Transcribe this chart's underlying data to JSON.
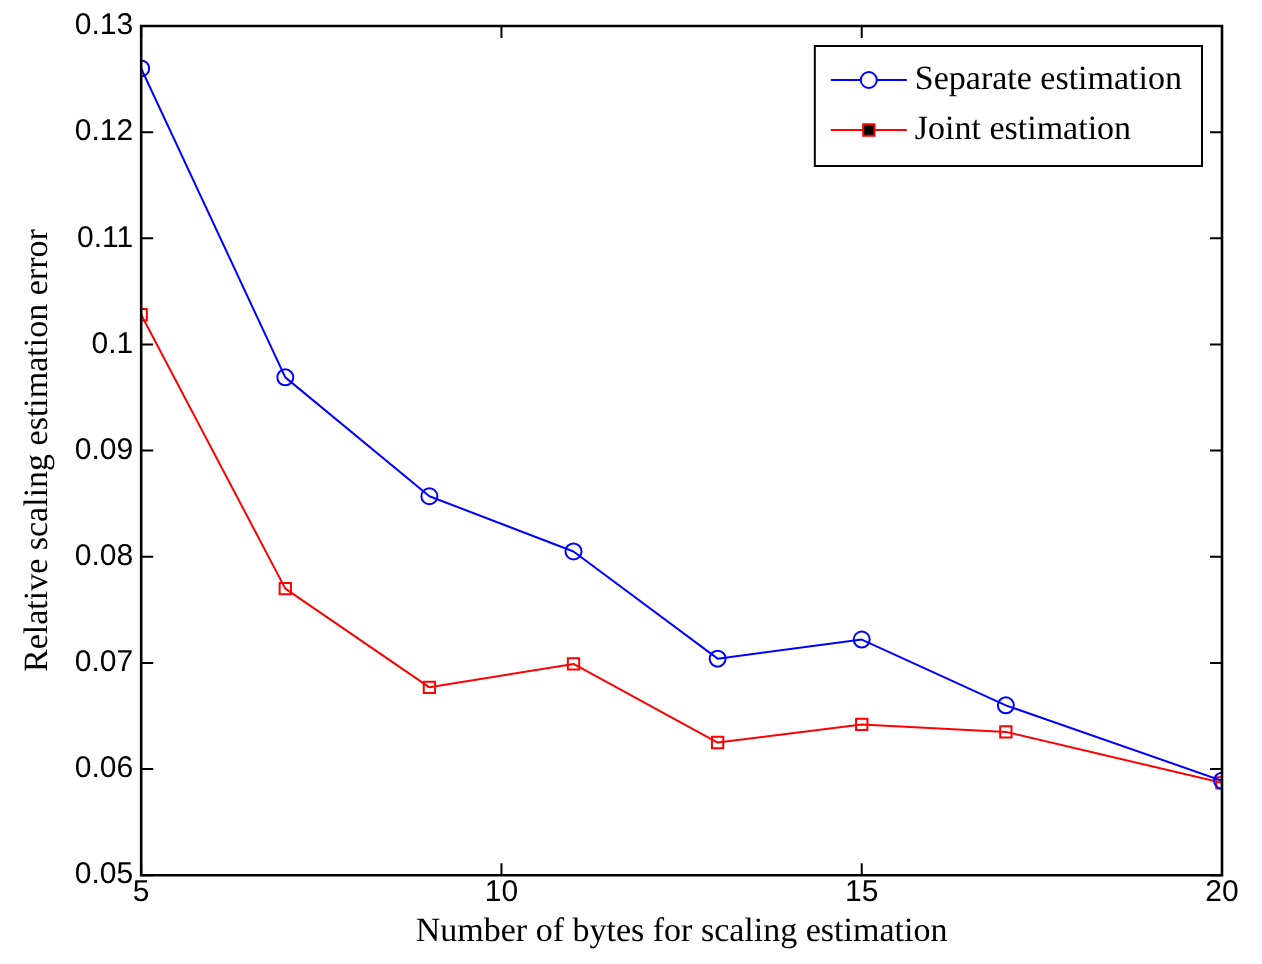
{
  "chart_data": {
    "type": "line",
    "xlabel": "Number of bytes for scaling estimation",
    "ylabel": "Relative scaling estimation error",
    "x": [
      5,
      7,
      9,
      11,
      13,
      15,
      17,
      20
    ],
    "series": [
      {
        "name": "Separate estimation",
        "color": "#0000ff",
        "marker": "circle",
        "values": [
          0.126,
          0.0969,
          0.0857,
          0.0805,
          0.0704,
          0.0722,
          0.066,
          0.0589
        ]
      },
      {
        "name": "Joint estimation",
        "color": "#ff0000",
        "marker": "square",
        "values": [
          0.1028,
          0.077,
          0.0677,
          0.0699,
          0.0625,
          0.0642,
          0.0635,
          0.0587
        ]
      }
    ],
    "xlim": [
      5,
      20
    ],
    "xticks": [
      5,
      10,
      15,
      20
    ],
    "ylim": [
      0.05,
      0.13
    ],
    "yticks": [
      0.05,
      0.06,
      0.07,
      0.08,
      0.09,
      0.1,
      0.11,
      0.12,
      0.13
    ],
    "grid": false,
    "legend": "top right",
    "line_style": "solid"
  }
}
